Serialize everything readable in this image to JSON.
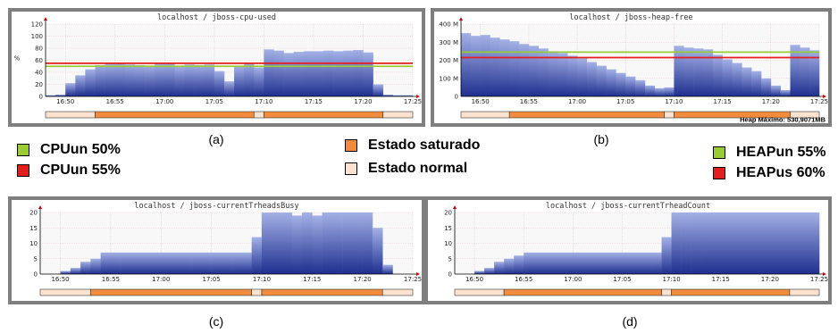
{
  "chart_data": [
    {
      "type": "area",
      "title": "localhost / jboss-cpu-used",
      "caption": "(a)",
      "ylabel": "%",
      "ylim": [
        0,
        120
      ],
      "yticks": [
        "0",
        "20",
        "40",
        "60",
        "80",
        "100",
        "120"
      ],
      "yticks_values": [
        0,
        20,
        40,
        60,
        80,
        100,
        120
      ],
      "xticks": [
        "16:50",
        "16:55",
        "17:00",
        "17:05",
        "17:10",
        "17:15",
        "17:20",
        "17:25"
      ],
      "xrange": [
        "16:48",
        "17:25"
      ],
      "x": [
        "16:48",
        "16:49",
        "16:50",
        "16:51",
        "16:52",
        "16:53",
        "16:54",
        "16:55",
        "16:56",
        "16:57",
        "16:58",
        "16:59",
        "17:00",
        "17:01",
        "17:02",
        "17:03",
        "17:04",
        "17:05",
        "17:06",
        "17:07",
        "17:08",
        "17:09",
        "17:10",
        "17:11",
        "17:12",
        "17:13",
        "17:14",
        "17:15",
        "17:16",
        "17:17",
        "17:18",
        "17:19",
        "17:20",
        "17:21",
        "17:22",
        "17:23",
        "17:24"
      ],
      "values": [
        2,
        3,
        22,
        35,
        45,
        52,
        54,
        55,
        53,
        52,
        51,
        54,
        55,
        50,
        53,
        52,
        53,
        42,
        25,
        50,
        55,
        48,
        78,
        76,
        72,
        74,
        75,
        75,
        76,
        75,
        76,
        77,
        73,
        20,
        3,
        2,
        2
      ],
      "thresholds": [
        {
          "name": "CPUun 50%",
          "value": 50,
          "color": "#99cc33"
        },
        {
          "name": "CPUun 55%",
          "value": 55,
          "color": "#e31e1e"
        }
      ],
      "state_bar": [
        {
          "state": "normal",
          "from": "16:48",
          "to": "16:53"
        },
        {
          "state": "saturado",
          "from": "16:53",
          "to": "17:09"
        },
        {
          "state": "normal",
          "from": "17:09",
          "to": "17:10"
        },
        {
          "state": "saturado",
          "from": "17:10",
          "to": "17:22"
        },
        {
          "state": "normal",
          "from": "17:22",
          "to": "17:25"
        }
      ]
    },
    {
      "type": "area",
      "title": "localhost / jboss-heap-free",
      "caption": "(b)",
      "ylabel": "",
      "ylim": [
        0,
        400
      ],
      "yticks": [
        "0",
        "100 M",
        "200 M",
        "300 M",
        "400 M"
      ],
      "yticks_values": [
        0,
        100,
        200,
        300,
        400
      ],
      "xticks": [
        "16:50",
        "16:55",
        "17:00",
        "17:05",
        "17:10",
        "17:15",
        "17:20",
        "17:25"
      ],
      "xrange": [
        "16:48",
        "17:25"
      ],
      "x": [
        "16:48",
        "16:49",
        "16:50",
        "16:51",
        "16:52",
        "16:53",
        "16:54",
        "16:55",
        "16:56",
        "16:57",
        "16:58",
        "16:59",
        "17:00",
        "17:01",
        "17:02",
        "17:03",
        "17:04",
        "17:05",
        "17:06",
        "17:07",
        "17:08",
        "17:09",
        "17:10",
        "17:11",
        "17:12",
        "17:13",
        "17:14",
        "17:15",
        "17:16",
        "17:17",
        "17:18",
        "17:19",
        "17:20",
        "17:21",
        "17:22",
        "17:23",
        "17:24"
      ],
      "values": [
        350,
        335,
        340,
        325,
        315,
        305,
        290,
        280,
        265,
        250,
        240,
        225,
        210,
        190,
        170,
        150,
        130,
        110,
        90,
        60,
        45,
        50,
        280,
        270,
        265,
        260,
        230,
        205,
        185,
        160,
        140,
        100,
        60,
        35,
        285,
        270,
        255
      ],
      "thresholds": [
        {
          "name": "HEAPun 55%",
          "value": 245,
          "color": "#99cc33"
        },
        {
          "name": "HEAPus 60%",
          "value": 215,
          "color": "#e31e1e"
        }
      ],
      "annotation": "Heap Máximo: 530,9071MB",
      "state_bar": [
        {
          "state": "normal",
          "from": "16:48",
          "to": "16:53"
        },
        {
          "state": "saturado",
          "from": "16:53",
          "to": "17:09"
        },
        {
          "state": "normal",
          "from": "17:09",
          "to": "17:10"
        },
        {
          "state": "saturado",
          "from": "17:10",
          "to": "17:22"
        },
        {
          "state": "normal",
          "from": "17:22",
          "to": "17:25"
        }
      ]
    },
    {
      "type": "area",
      "title": "localhost / jboss-currentTrheadsBusy",
      "caption": "(c)",
      "ylabel": "",
      "ylim": [
        0,
        20
      ],
      "yticks": [
        "0",
        "5",
        "10",
        "15",
        "20"
      ],
      "yticks_values": [
        0,
        5,
        10,
        15,
        20
      ],
      "xticks": [
        "16:50",
        "16:55",
        "17:00",
        "17:05",
        "17:10",
        "17:15",
        "17:20",
        "17:25"
      ],
      "xrange": [
        "16:48",
        "17:25"
      ],
      "x": [
        "16:48",
        "16:49",
        "16:50",
        "16:51",
        "16:52",
        "16:53",
        "16:54",
        "16:55",
        "16:56",
        "16:57",
        "16:58",
        "16:59",
        "17:00",
        "17:01",
        "17:02",
        "17:03",
        "17:04",
        "17:05",
        "17:06",
        "17:07",
        "17:08",
        "17:09",
        "17:10",
        "17:11",
        "17:12",
        "17:13",
        "17:14",
        "17:15",
        "17:16",
        "17:17",
        "17:18",
        "17:19",
        "17:20",
        "17:21",
        "17:22",
        "17:23",
        "17:24"
      ],
      "values": [
        0,
        0,
        1,
        2,
        4,
        5,
        7,
        7,
        7,
        7,
        7,
        7,
        7,
        7,
        7,
        7,
        7,
        7,
        7,
        7,
        7,
        12,
        20,
        20,
        20,
        19,
        20,
        19,
        20,
        20,
        20,
        20,
        20,
        15,
        3,
        0,
        0
      ],
      "state_bar": [
        {
          "state": "normal",
          "from": "16:48",
          "to": "16:53"
        },
        {
          "state": "saturado",
          "from": "16:53",
          "to": "17:09"
        },
        {
          "state": "normal",
          "from": "17:09",
          "to": "17:10"
        },
        {
          "state": "saturado",
          "from": "17:10",
          "to": "17:22"
        },
        {
          "state": "normal",
          "from": "17:22",
          "to": "17:25"
        }
      ]
    },
    {
      "type": "area",
      "title": "localhost / jboss-currentTrheadCount",
      "caption": "(d)",
      "ylabel": "",
      "ylim": [
        0,
        20
      ],
      "yticks": [
        "0",
        "5",
        "10",
        "15",
        "20"
      ],
      "yticks_values": [
        0,
        5,
        10,
        15,
        20
      ],
      "xticks": [
        "16:50",
        "16:55",
        "17:00",
        "17:05",
        "17:10",
        "17:15",
        "17:20",
        "17:25"
      ],
      "xrange": [
        "16:48",
        "17:25"
      ],
      "x": [
        "16:48",
        "16:49",
        "16:50",
        "16:51",
        "16:52",
        "16:53",
        "16:54",
        "16:55",
        "16:56",
        "16:57",
        "16:58",
        "16:59",
        "17:00",
        "17:01",
        "17:02",
        "17:03",
        "17:04",
        "17:05",
        "17:06",
        "17:07",
        "17:08",
        "17:09",
        "17:10",
        "17:11",
        "17:12",
        "17:13",
        "17:14",
        "17:15",
        "17:16",
        "17:17",
        "17:18",
        "17:19",
        "17:20",
        "17:21",
        "17:22",
        "17:23",
        "17:24"
      ],
      "values": [
        0,
        0,
        1,
        2,
        4,
        5,
        6,
        7,
        7,
        7,
        7,
        7,
        7,
        7,
        7,
        7,
        7,
        7,
        7,
        7,
        7,
        12,
        20,
        20,
        20,
        20,
        20,
        20,
        20,
        20,
        20,
        20,
        20,
        20,
        20,
        20,
        20
      ],
      "state_bar": [
        {
          "state": "normal",
          "from": "16:48",
          "to": "16:53"
        },
        {
          "state": "saturado",
          "from": "16:53",
          "to": "17:09"
        },
        {
          "state": "normal",
          "from": "17:09",
          "to": "17:10"
        },
        {
          "state": "saturado",
          "from": "17:10",
          "to": "17:22"
        },
        {
          "state": "normal",
          "from": "17:22",
          "to": "17:25"
        }
      ]
    }
  ],
  "legend": {
    "cpu": [
      {
        "label": "CPUun 50%",
        "color": "#99cc33"
      },
      {
        "label": "CPUun 55%",
        "color": "#e31e1e"
      }
    ],
    "states": [
      {
        "label": "Estado saturado",
        "color": "#f28c3c"
      },
      {
        "label": "Estado normal",
        "color": "#fde3cf"
      }
    ],
    "heap": [
      {
        "label": "HEAPun 55%",
        "color": "#99cc33"
      },
      {
        "label": "HEAPus 60%",
        "color": "#e31e1e"
      }
    ]
  },
  "colors": {
    "area_top": "#a4b1e6",
    "area_bottom": "#1e2f8f",
    "plot_bg": "#f8f8f8",
    "grid": "#e4c8c8",
    "state_normal": "#fde3cf",
    "state_saturado": "#f28c3c"
  }
}
